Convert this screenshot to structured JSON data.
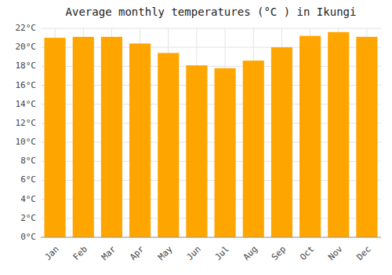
{
  "chart_data": {
    "type": "bar",
    "title": "Average monthly temperatures (°C ) in Ikungi",
    "categories": [
      "Jan",
      "Feb",
      "Mar",
      "Apr",
      "May",
      "Jun",
      "Jul",
      "Aug",
      "Sep",
      "Oct",
      "Nov",
      "Dec"
    ],
    "values": [
      21.0,
      21.1,
      21.1,
      20.4,
      19.4,
      18.1,
      17.8,
      18.6,
      20.0,
      21.2,
      21.6,
      21.1
    ],
    "color": "#FFA500",
    "ylim": [
      0,
      22
    ],
    "yticks": [
      {
        "value": 0,
        "label": "0°C"
      },
      {
        "value": 2,
        "label": "2°C"
      },
      {
        "value": 4,
        "label": "4°C"
      },
      {
        "value": 6,
        "label": "6°C"
      },
      {
        "value": 8,
        "label": "8°C"
      },
      {
        "value": 10,
        "label": "10°C"
      },
      {
        "value": 12,
        "label": "12°C"
      },
      {
        "value": 14,
        "label": "14°C"
      },
      {
        "value": 16,
        "label": "16°C"
      },
      {
        "value": 18,
        "label": "18°C"
      },
      {
        "value": 20,
        "label": "20°C"
      },
      {
        "value": 22,
        "label": "22°C"
      }
    ],
    "grid": true
  }
}
